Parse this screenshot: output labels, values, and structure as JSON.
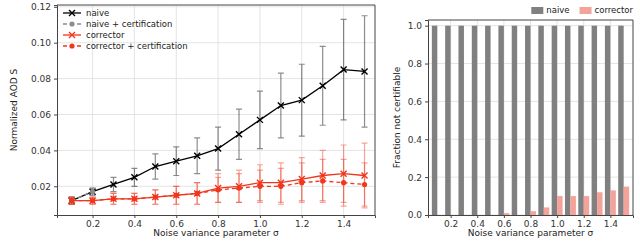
{
  "chart_data": [
    {
      "type": "line",
      "x_label": "Noise variance parameter σ",
      "y_label": "Normalized AOD S",
      "x": [
        0.1,
        0.2,
        0.3,
        0.4,
        0.5,
        0.6,
        0.7,
        0.8,
        0.9,
        1.0,
        1.1,
        1.2,
        1.3,
        1.4,
        1.5
      ],
      "xlim": [
        0.03,
        1.55
      ],
      "xticks": [
        0.2,
        0.4,
        0.6,
        0.8,
        {
          "value": 1.0,
          "label": "1.0"
        },
        1.2,
        1.4
      ],
      "ylim": [
        0.004,
        0.121
      ],
      "yticks": [
        0.02,
        0.04,
        0.06,
        0.08,
        {
          "value": 0.1,
          "label": "0.10"
        },
        0.12
      ],
      "grid": true,
      "legend": "upper left",
      "series": [
        {
          "name": "naive",
          "color": "#000000",
          "marker": "x",
          "line_style": "solid",
          "values": [
            0.012,
            0.017,
            0.021,
            0.025,
            0.031,
            0.034,
            0.037,
            0.041,
            0.049,
            0.057,
            0.065,
            0.068,
            0.076,
            0.085,
            0.084
          ],
          "errors": [
            0.002,
            0.002,
            0.004,
            0.005,
            0.007,
            0.008,
            0.01,
            0.012,
            0.014,
            0.016,
            0.018,
            0.02,
            0.022,
            0.028,
            0.031
          ]
        },
        {
          "name": "naive + certification",
          "color": "#8c8c8c",
          "marker": "o",
          "line_style": "dashed",
          "values": [
            0.012,
            0.017,
            null,
            null,
            null,
            null,
            null,
            null,
            null,
            null,
            null,
            null,
            null,
            null,
            null
          ],
          "errors": [
            0.002,
            0.002,
            null,
            null,
            null,
            null,
            null,
            null,
            null,
            null,
            null,
            null,
            null,
            null,
            null
          ]
        },
        {
          "name": "corrector",
          "color": "#f0361c",
          "marker": "x",
          "line_style": "solid",
          "values": [
            0.012,
            0.012,
            0.013,
            0.013,
            0.014,
            0.015,
            0.016,
            0.019,
            0.02,
            0.022,
            0.022,
            0.024,
            0.026,
            0.027,
            0.026
          ],
          "errors": [
            0.002,
            0.002,
            0.003,
            0.003,
            0.004,
            0.005,
            0.006,
            0.008,
            0.009,
            0.01,
            0.011,
            0.012,
            0.014,
            0.016,
            0.018
          ]
        },
        {
          "name": "corrector + certification",
          "color": "#f0361c",
          "marker": "o",
          "line_style": "dashed",
          "values": [
            0.012,
            0.012,
            0.013,
            0.013,
            0.014,
            0.015,
            0.016,
            0.018,
            0.019,
            0.02,
            0.02,
            0.022,
            0.023,
            0.022,
            0.021
          ],
          "errors": [
            0.002,
            0.002,
            0.003,
            0.003,
            0.004,
            0.005,
            0.006,
            0.007,
            0.008,
            0.009,
            0.01,
            0.011,
            0.012,
            0.013,
            0.012
          ]
        }
      ]
    },
    {
      "type": "bar",
      "x_label": "Noise variance parameter σ",
      "y_label": "Fraction not certifiable",
      "x": [
        0.1,
        0.2,
        0.3,
        0.4,
        0.5,
        0.6,
        0.7,
        0.8,
        0.9,
        1.0,
        1.1,
        1.2,
        1.3,
        1.4,
        1.5
      ],
      "xlim": [
        0.03,
        1.57
      ],
      "xticks": [
        0.2,
        0.4,
        0.6,
        0.8,
        {
          "value": 1.0,
          "label": "1.0"
        },
        1.2,
        1.4
      ],
      "ylim": [
        0,
        1.03
      ],
      "yticks": [
        {
          "value": 0,
          "label": "0.0"
        },
        0.2,
        0.4,
        0.6,
        0.8,
        {
          "value": 1.0,
          "label": "1.0"
        }
      ],
      "grid": true,
      "legend": "upper right",
      "series": [
        {
          "name": "naive",
          "color": "#808080",
          "values": [
            1,
            1,
            1,
            1,
            1,
            1,
            1,
            1,
            1,
            1,
            1,
            1,
            1,
            1,
            1
          ]
        },
        {
          "name": "corrector",
          "color": "#f4a39a",
          "values": [
            0,
            0,
            0,
            0,
            0,
            0.01,
            0,
            0.02,
            0.04,
            0.1,
            0.1,
            0.1,
            0.12,
            0.13,
            0.15
          ]
        }
      ]
    }
  ]
}
